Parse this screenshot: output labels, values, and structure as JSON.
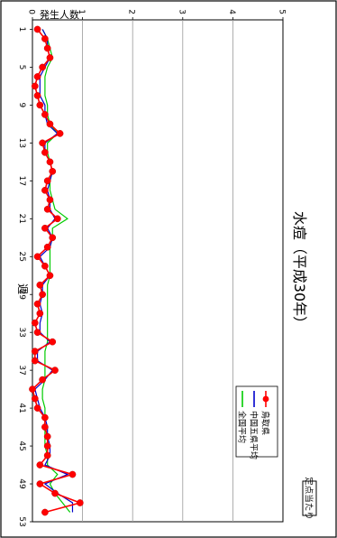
{
  "chart_data": {
    "type": "line",
    "orientation": "rotated-90-clockwise",
    "title": "水痘（平成30年）",
    "badge": "定点当たり",
    "xlabel": "週",
    "ylabel": "発生人数",
    "x_ticks": [
      1,
      5,
      9,
      13,
      17,
      21,
      25,
      29,
      33,
      37,
      41,
      45,
      49,
      53
    ],
    "y_ticks": [
      0,
      1,
      2,
      3,
      4,
      5
    ],
    "xlim": [
      0,
      53
    ],
    "ylim": [
      0,
      5
    ],
    "grid": true,
    "legend_position": "top-right",
    "x": [
      1,
      2,
      3,
      4,
      5,
      6,
      7,
      8,
      9,
      10,
      11,
      12,
      13,
      14,
      15,
      16,
      17,
      18,
      19,
      20,
      21,
      22,
      23,
      24,
      25,
      26,
      27,
      28,
      29,
      30,
      31,
      32,
      33,
      34,
      35,
      36,
      37,
      38,
      39,
      40,
      41,
      42,
      43,
      44,
      45,
      46,
      47,
      48,
      49,
      50,
      51,
      52
    ],
    "series": [
      {
        "name": "鳥取県",
        "color": "#ff0000",
        "marker": "circle",
        "values": [
          0.1,
          0.25,
          0.3,
          0.35,
          0.2,
          0.1,
          0.05,
          0.1,
          0.15,
          0.25,
          0.35,
          0.55,
          0.2,
          0.25,
          0.35,
          0.4,
          0.3,
          0.25,
          0.35,
          0.3,
          0.5,
          0.25,
          0.4,
          0.3,
          0.1,
          0.25,
          0.35,
          0.15,
          0.2,
          0.1,
          0.15,
          0.05,
          0.1,
          0.4,
          0.05,
          0.05,
          0.45,
          0.2,
          0.0,
          0.05,
          0.1,
          0.25,
          0.25,
          0.3,
          0.3,
          0.3,
          0.15,
          0.8,
          0.15,
          0.45,
          0.95,
          0.25
        ]
      },
      {
        "name": "中国五県平均",
        "color": "#0000cc",
        "marker": "none",
        "values": [
          0.2,
          0.3,
          0.3,
          0.35,
          0.25,
          0.15,
          0.15,
          0.15,
          0.25,
          0.25,
          0.3,
          0.5,
          0.25,
          0.25,
          0.35,
          0.4,
          0.35,
          0.3,
          0.35,
          0.35,
          0.45,
          0.3,
          0.4,
          0.35,
          0.15,
          0.25,
          0.35,
          0.2,
          0.2,
          0.15,
          0.2,
          0.15,
          0.15,
          0.35,
          0.1,
          0.1,
          0.4,
          0.25,
          0.05,
          0.1,
          0.15,
          0.25,
          0.3,
          0.3,
          0.35,
          0.35,
          0.25,
          0.7,
          0.25,
          0.5,
          0.8,
          0.8
        ]
      },
      {
        "name": "全国平均",
        "color": "#00cc00",
        "marker": "none",
        "values": [
          0.2,
          0.3,
          0.35,
          0.4,
          0.3,
          0.25,
          0.25,
          0.25,
          0.3,
          0.3,
          0.35,
          0.5,
          0.3,
          0.3,
          0.35,
          0.4,
          0.35,
          0.35,
          0.4,
          0.45,
          0.7,
          0.4,
          0.4,
          0.35,
          0.35,
          0.35,
          0.35,
          0.3,
          0.3,
          0.3,
          0.3,
          0.3,
          0.3,
          0.3,
          0.25,
          0.25,
          0.25,
          0.25,
          0.2,
          0.2,
          0.25,
          0.25,
          0.25,
          0.25,
          0.25,
          0.3,
          0.3,
          0.5,
          0.35,
          0.45,
          0.6,
          0.75
        ]
      }
    ]
  }
}
